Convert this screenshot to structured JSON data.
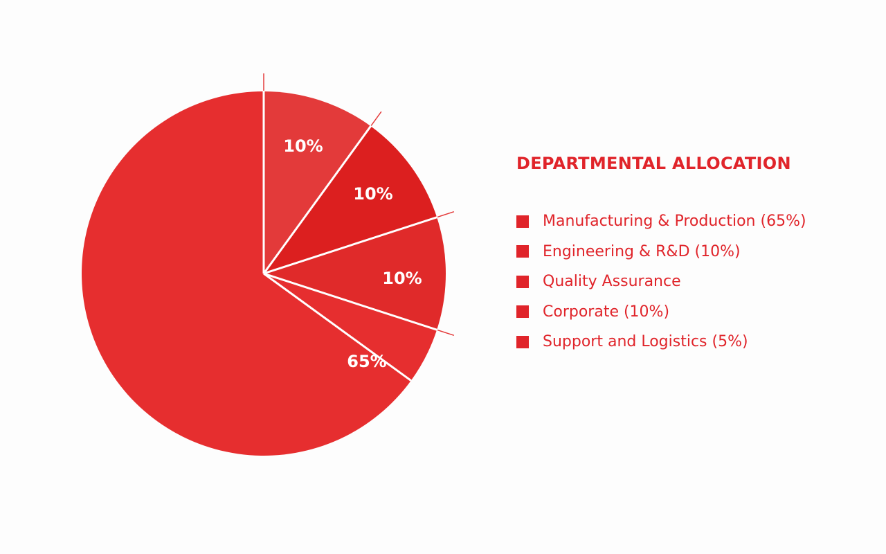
{
  "colors": {
    "text": "#e0242a",
    "slice_separator": "#ffffff",
    "background": "#fdfdfd"
  },
  "chart_data": {
    "type": "pie",
    "title": "DEPARTMENTAL ALLOCATION",
    "slices": [
      {
        "label": "Manufacturing & Production (65%)",
        "value": 65,
        "data_label": "65%",
        "color": "#e62e2f"
      },
      {
        "label": "Engineering & R&D (10%)",
        "value": 10,
        "data_label": "10%",
        "color": "#e33a3a"
      },
      {
        "label": "Quality Assurance",
        "value": 10,
        "data_label": "10%",
        "color": "#dc1f1f"
      },
      {
        "label": "Corporate (10%)",
        "value": 10,
        "data_label": "10%",
        "color": "#e02a2a"
      },
      {
        "label": "Support and Logistics (5%)",
        "value": 5,
        "data_label": "",
        "color": "#e62e2f"
      }
    ],
    "legend_position": "right"
  }
}
